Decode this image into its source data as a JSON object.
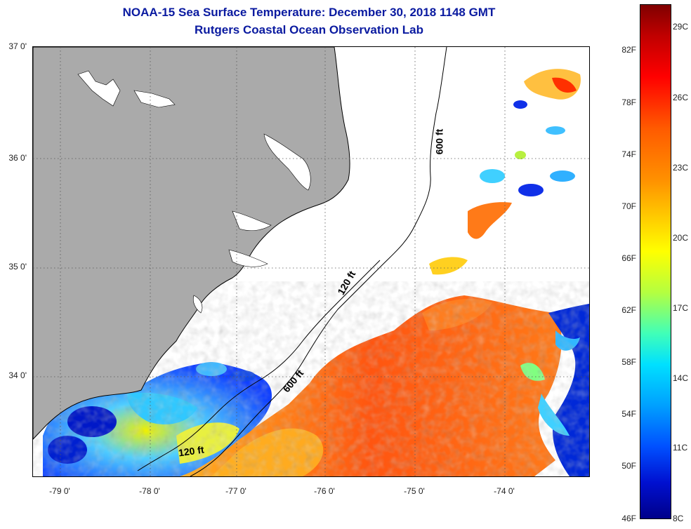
{
  "title": {
    "line1": "NOAA-15 Sea Surface Temperature:  December 30, 2018 1148 GMT",
    "line2": "Rutgers Coastal Ocean Observation Lab"
  },
  "axes": {
    "y_labels": [
      "37 0'",
      "36 0'",
      "35 0'",
      "34 0'"
    ],
    "x_labels": [
      "-79 0'",
      "-78 0'",
      "-77 0'",
      "-76 0'",
      "-75 0'",
      "-74 0'"
    ]
  },
  "contours": {
    "c600_top": "600 ft",
    "c120_mid": "120 ft",
    "c600_mid": "600 ft",
    "c120_bot": "120 ft"
  },
  "colorbar": {
    "fahrenheit": [
      "82F",
      "78F",
      "74F",
      "70F",
      "66F",
      "62F",
      "58F",
      "54F",
      "50F",
      "46F"
    ],
    "celsius": [
      "29C",
      "26C",
      "23C",
      "20C",
      "17C",
      "14C",
      "11C",
      "8C"
    ]
  },
  "colors": {
    "land": "#aaaaaa",
    "title": "#0a1aa0",
    "cold": "#0018c8",
    "warm": "#ff5a10"
  }
}
